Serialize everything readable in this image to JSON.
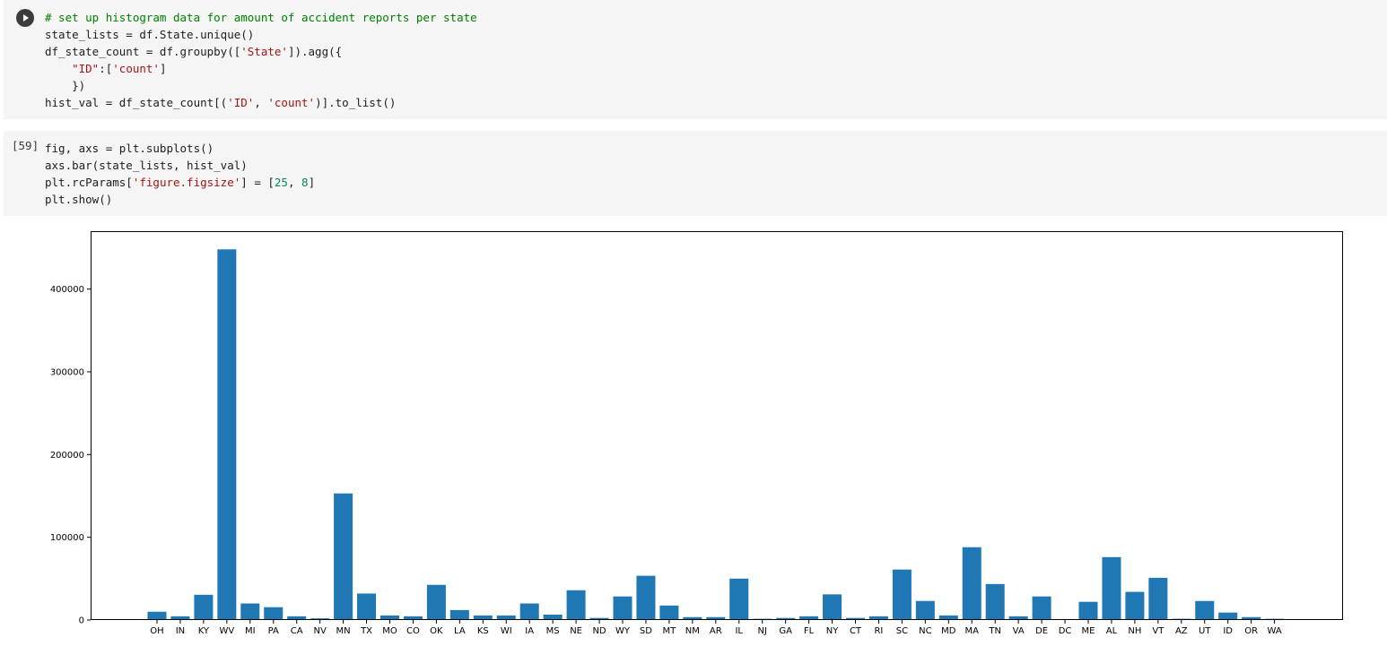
{
  "cells": {
    "cell1": {
      "run_button_icon": "play-icon",
      "lines": [
        [
          {
            "t": "# set up histogram data for amount of accident reports per state",
            "c": "comment"
          }
        ],
        [
          {
            "t": "state_lists = df.State.unique()",
            "c": "plain"
          }
        ],
        [
          {
            "t": "df_state_count = df.groupby([",
            "c": "plain"
          },
          {
            "t": "'State'",
            "c": "string"
          },
          {
            "t": "]).agg({",
            "c": "plain"
          }
        ],
        [
          {
            "t": "    ",
            "c": "plain"
          },
          {
            "t": "\"ID\"",
            "c": "string"
          },
          {
            "t": ":[",
            "c": "plain"
          },
          {
            "t": "'count'",
            "c": "string"
          },
          {
            "t": "]",
            "c": "plain"
          }
        ],
        [
          {
            "t": "    })",
            "c": "plain"
          }
        ],
        [
          {
            "t": "hist_val = df_state_count[(",
            "c": "plain"
          },
          {
            "t": "'ID'",
            "c": "string"
          },
          {
            "t": ", ",
            "c": "plain"
          },
          {
            "t": "'count'",
            "c": "string"
          },
          {
            "t": ")].to_list()",
            "c": "plain"
          }
        ]
      ]
    },
    "cell2": {
      "execution_count": "[59]",
      "lines": [
        [
          {
            "t": "fig, axs = plt.subplots()",
            "c": "plain"
          }
        ],
        [
          {
            "t": "axs.bar(state_lists, hist_val)",
            "c": "plain"
          }
        ],
        [
          {
            "t": "plt.rcParams[",
            "c": "plain"
          },
          {
            "t": "'figure.figsize'",
            "c": "string"
          },
          {
            "t": "] = [",
            "c": "plain"
          },
          {
            "t": "25",
            "c": "number"
          },
          {
            "t": ", ",
            "c": "plain"
          },
          {
            "t": "8",
            "c": "number"
          },
          {
            "t": "]",
            "c": "plain"
          }
        ],
        [
          {
            "t": "plt.show()",
            "c": "plain"
          }
        ]
      ]
    }
  },
  "chart_data": {
    "type": "bar",
    "categories": [
      "OH",
      "IN",
      "KY",
      "WV",
      "MI",
      "PA",
      "CA",
      "NV",
      "MN",
      "TX",
      "MO",
      "CO",
      "OK",
      "LA",
      "KS",
      "WI",
      "IA",
      "MS",
      "NE",
      "ND",
      "WY",
      "SD",
      "MT",
      "NM",
      "AR",
      "IL",
      "NJ",
      "GA",
      "FL",
      "NY",
      "CT",
      "RI",
      "SC",
      "NC",
      "MD",
      "MA",
      "TN",
      "VA",
      "DE",
      "DC",
      "ME",
      "AL",
      "NH",
      "VT",
      "AZ",
      "UT",
      "ID",
      "OR",
      "WA"
    ],
    "values": [
      10000,
      4500,
      30500,
      448000,
      20000,
      15500,
      4500,
      2000,
      153000,
      32000,
      5500,
      4500,
      42500,
      12000,
      5500,
      5500,
      20000,
      6500,
      36000,
      2500,
      28500,
      53500,
      17500,
      3500,
      3500,
      50000,
      1500,
      2500,
      4500,
      31000,
      2500,
      4500,
      61000,
      23000,
      5500,
      88000,
      43500,
      4500,
      28500,
      500,
      22000,
      76000,
      34000,
      51000,
      1500,
      23000,
      9000,
      3500,
      1500
    ],
    "yticks": [
      0,
      100000,
      200000,
      300000,
      400000
    ],
    "ylim": [
      0,
      470000
    ],
    "color": "#1f77b4",
    "grid": false,
    "title": "",
    "xlabel": "",
    "ylabel": ""
  }
}
